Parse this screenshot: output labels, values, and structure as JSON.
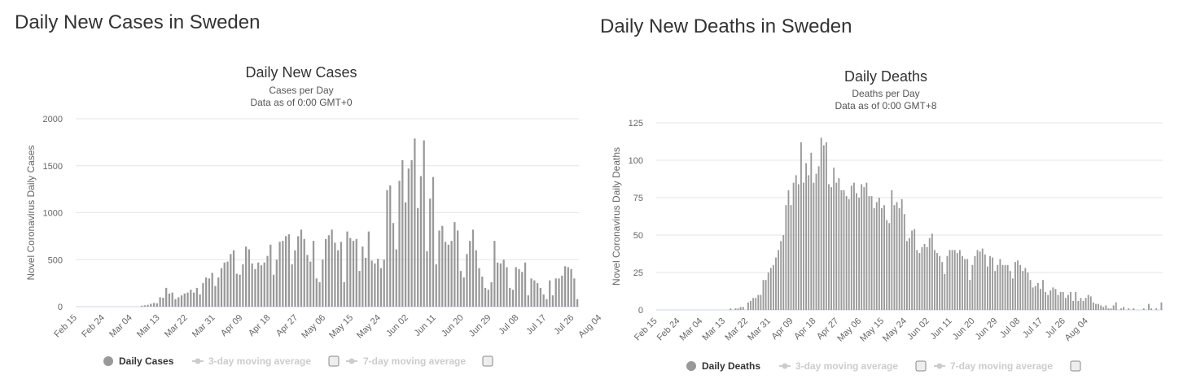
{
  "sections": [
    {
      "heading": "Daily New Cases in Sweden",
      "chart_data": {
        "type": "bar",
        "title": "Daily New Cases",
        "subtitle": "Cases per Day",
        "subtitle2": "Data as of 0:00 GMT+0",
        "ylabel": "Novel Coronavirus Daily Cases",
        "xlabel": "",
        "ylim": [
          0,
          2000
        ],
        "yticks": [
          0,
          500,
          1000,
          1500,
          2000
        ],
        "xtick_labels": [
          "Feb 15",
          "Feb 24",
          "Mar 04",
          "Mar 13",
          "Mar 22",
          "Mar 31",
          "Apr 09",
          "Apr 18",
          "Apr 27",
          "May 06",
          "May 15",
          "May 24",
          "Jun 02",
          "Jun 11",
          "Jun 20",
          "Jun 29",
          "Jul 08",
          "Jul 17",
          "Jul 26",
          "Aug 04"
        ],
        "grid": true,
        "bar_color": "#999999",
        "series": [
          {
            "name": "Daily Cases",
            "active": true,
            "color": "#999999",
            "values": [
              0,
              0,
              0,
              0,
              0,
              0,
              0,
              0,
              0,
              0,
              0,
              0,
              0,
              0,
              0,
              0,
              0,
              0,
              0,
              0,
              0,
              10,
              15,
              20,
              30,
              40,
              35,
              100,
              95,
              200,
              140,
              150,
              80,
              100,
              120,
              140,
              150,
              180,
              150,
              200,
              130,
              250,
              310,
              300,
              360,
              220,
              310,
              410,
              470,
              480,
              560,
              600,
              350,
              340,
              450,
              640,
              610,
              460,
              400,
              470,
              440,
              470,
              540,
              660,
              340,
              500,
              690,
              700,
              750,
              770,
              450,
              600,
              750,
              820,
              720,
              550,
              480,
              700,
              300,
              260,
              500,
              720,
              760,
              820,
              680,
              600,
              690,
              260,
              800,
              730,
              700,
              720,
              380,
              640,
              520,
              800,
              490,
              460,
              510,
              410,
              500,
              1240,
              1290,
              890,
              610,
              1340,
              1560,
              1110,
              1470,
              1560,
              1790,
              1050,
              1390,
              1770,
              590,
              1150,
              1380,
              450,
              810,
              860,
              690,
              660,
              700,
              900,
              810,
              380,
              310,
              560,
              700,
              820,
              600,
              410,
              320,
              200,
              180,
              260,
              700,
              470,
              460,
              500,
              420,
              200,
              180,
              420,
              400,
              370,
              470,
              120,
              300,
              280,
              250,
              200,
              130,
              80,
              280,
              120,
              300,
              300,
              330,
              430,
              420,
              400,
              300,
              80
            ]
          },
          {
            "name": "3-day moving average",
            "active": false,
            "color": "#cccccc"
          },
          {
            "name": "7-day moving average",
            "active": false,
            "color": "#cccccc"
          }
        ]
      }
    },
    {
      "heading": "Daily New Deaths in Sweden",
      "chart_data": {
        "type": "bar",
        "title": "Daily Deaths",
        "subtitle": "Deaths per Day",
        "subtitle2": "Data as of 0:00 GMT+8",
        "ylabel": "Novel Coronavirus Daily Deaths",
        "xlabel": "",
        "ylim": [
          0,
          125
        ],
        "yticks": [
          0,
          25,
          50,
          75,
          100,
          125
        ],
        "xtick_labels": [
          "Feb 15",
          "Feb 24",
          "Mar 04",
          "Mar 13",
          "Mar 22",
          "Mar 31",
          "Apr 09",
          "Apr 18",
          "Apr 27",
          "May 06",
          "May 15",
          "May 24",
          "Jun 02",
          "Jun 11",
          "Jun 20",
          "Jun 29",
          "Jul 08",
          "Jul 17",
          "Jul 26",
          "Aug 04"
        ],
        "grid": true,
        "bar_color": "#999999",
        "series": [
          {
            "name": "Daily Deaths",
            "active": true,
            "color": "#999999",
            "values": [
              0,
              0,
              0,
              0,
              0,
              0,
              0,
              0,
              0,
              0,
              0,
              0,
              0,
              0,
              0,
              0,
              0,
              0,
              0,
              0,
              0,
              0,
              0,
              0,
              0,
              0,
              0,
              0,
              0,
              1,
              0,
              1,
              1,
              2,
              2,
              0,
              5,
              6,
              8,
              8,
              10,
              10,
              20,
              20,
              25,
              28,
              30,
              35,
              40,
              46,
              50,
              70,
              80,
              70,
              85,
              90,
              84,
              112,
              85,
              98,
              90,
              105,
              85,
              91,
              96,
              115,
              110,
              112,
              84,
              82,
              95,
              85,
              88,
              80,
              80,
              76,
              74,
              83,
              85,
              78,
              75,
              84,
              82,
              85,
              76,
              76,
              68,
              72,
              75,
              68,
              70,
              60,
              58,
              80,
              70,
              72,
              68,
              74,
              64,
              46,
              48,
              53,
              54,
              40,
              38,
              42,
              44,
              42,
              48,
              51,
              40,
              38,
              36,
              32,
              24,
              36,
              40,
              40,
              40,
              38,
              40,
              36,
              34,
              34,
              20,
              30,
              36,
              40,
              39,
              41,
              37,
              29,
              36,
              35,
              26,
              30,
              34,
              30,
              30,
              30,
              26,
              21,
              32,
              33,
              30,
              26,
              28,
              25,
              20,
              15,
              16,
              18,
              14,
              20,
              12,
              10,
              13,
              15,
              14,
              10,
              12,
              12,
              8,
              10,
              12,
              6,
              12,
              6,
              8,
              6,
              8,
              10,
              9,
              5,
              4,
              4,
              3,
              2,
              3,
              1,
              1,
              3,
              5,
              0,
              1,
              2,
              0,
              1,
              0,
              1,
              0,
              0,
              0,
              1,
              0,
              4,
              1,
              0,
              1,
              0,
              5
            ]
          },
          {
            "name": "3-day moving average",
            "active": false,
            "color": "#cccccc"
          },
          {
            "name": "7-day moving average",
            "active": false,
            "color": "#cccccc"
          }
        ]
      }
    }
  ]
}
